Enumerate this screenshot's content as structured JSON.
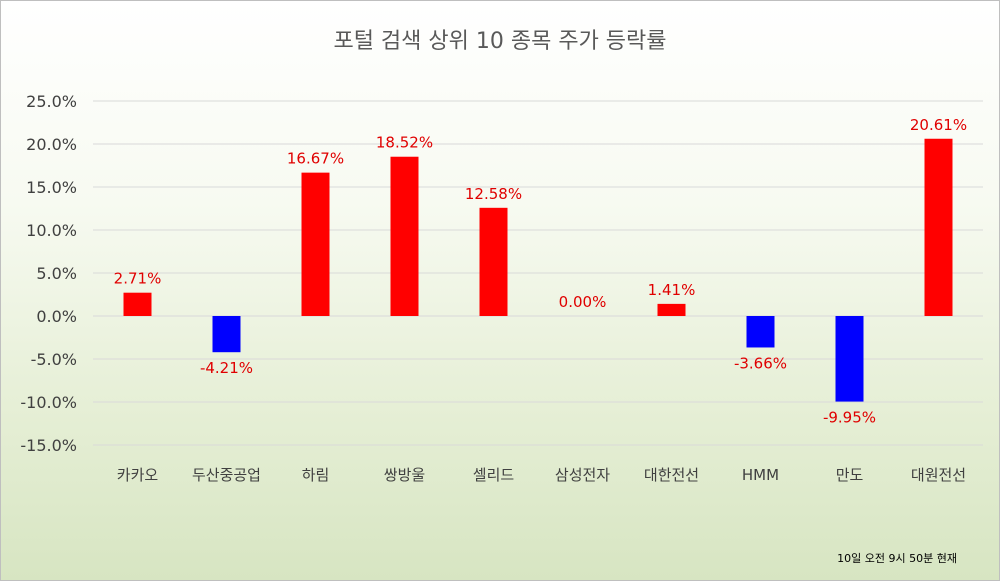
{
  "chart_data": {
    "type": "bar",
    "title": "포털 검색 상위 10 종목 주가 등락률",
    "note": "10일 오전 9시 50분 현재",
    "categories": [
      "카카오",
      "두산중공업",
      "하림",
      "쌍방울",
      "셀리드",
      "삼성전자",
      "대한전선",
      "HMM",
      "만도",
      "대원전선"
    ],
    "values": [
      2.71,
      -4.21,
      16.67,
      18.52,
      12.58,
      0.0,
      1.41,
      -3.66,
      -9.95,
      20.61
    ],
    "data_labels": [
      "2.71%",
      "-4.21%",
      "16.67%",
      "18.52%",
      "12.58%",
      "0.00%",
      "1.41%",
      "-3.66%",
      "-9.95%",
      "20.61%"
    ],
    "y_ticks": [
      25,
      20,
      15,
      10,
      5,
      0,
      -5,
      -10,
      -15
    ],
    "y_tick_labels": [
      "25.0%",
      "20.0%",
      "15.0%",
      "10.0%",
      "5.0%",
      "0.0%",
      "-5.0%",
      "-10.0%",
      "-15.0%"
    ],
    "ylim": [
      -15,
      25
    ],
    "grid": true,
    "colors": {
      "positive": "#ff0000",
      "negative": "#0000ff",
      "data_label": "#e00000"
    }
  }
}
